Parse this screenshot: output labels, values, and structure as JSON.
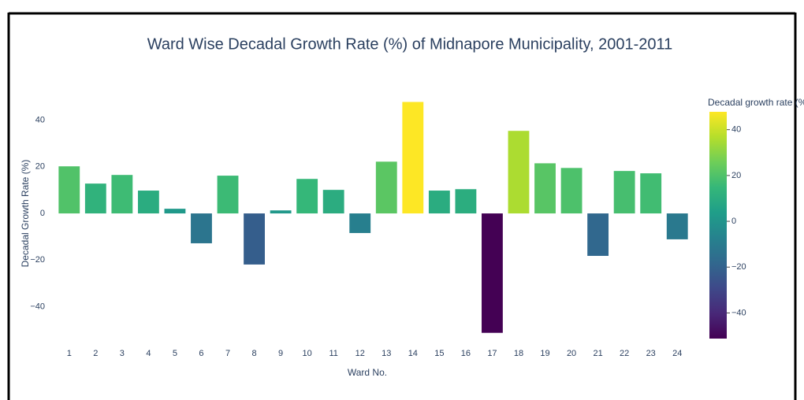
{
  "chart_data": {
    "type": "bar",
    "title": "Ward Wise Decadal Growth Rate (%) of Midnapore Municipality, 2001-2011",
    "x_label": "Ward No.",
    "y_label": "Decadal Growth Rate (%)",
    "categories": [
      "1",
      "2",
      "3",
      "4",
      "5",
      "6",
      "7",
      "8",
      "9",
      "10",
      "11",
      "12",
      "13",
      "14",
      "15",
      "16",
      "17",
      "18",
      "19",
      "20",
      "21",
      "22",
      "23",
      "24"
    ],
    "values": [
      20.2,
      12.8,
      16.5,
      9.8,
      2.0,
      -12.8,
      16.2,
      -21.9,
      1.3,
      14.8,
      10.1,
      -8.4,
      22.2,
      47.8,
      9.8,
      10.4,
      -51.2,
      35.4,
      21.5,
      19.5,
      -18.2,
      18.2,
      17.2,
      -11.1
    ],
    "ylim": [
      -54,
      51
    ],
    "yticks": [
      40,
      20,
      0,
      {
        "value": -20,
        "label": "−20"
      },
      {
        "value": -40,
        "label": "−40"
      }
    ],
    "grid": false,
    "colorbar_title": "Decadal growth rate (%)",
    "colorscale": [
      "#440154",
      "#482878",
      "#3e4989",
      "#31688e",
      "#26828e",
      "#1f9e89",
      "#35b779",
      "#6ece58",
      "#b5de2b",
      "#fde725"
    ],
    "clim": [
      -51.2,
      47.8
    ],
    "cticks": [
      40,
      20,
      0,
      {
        "value": -20,
        "label": "−20"
      },
      {
        "value": -40,
        "label": "−40"
      }
    ]
  }
}
